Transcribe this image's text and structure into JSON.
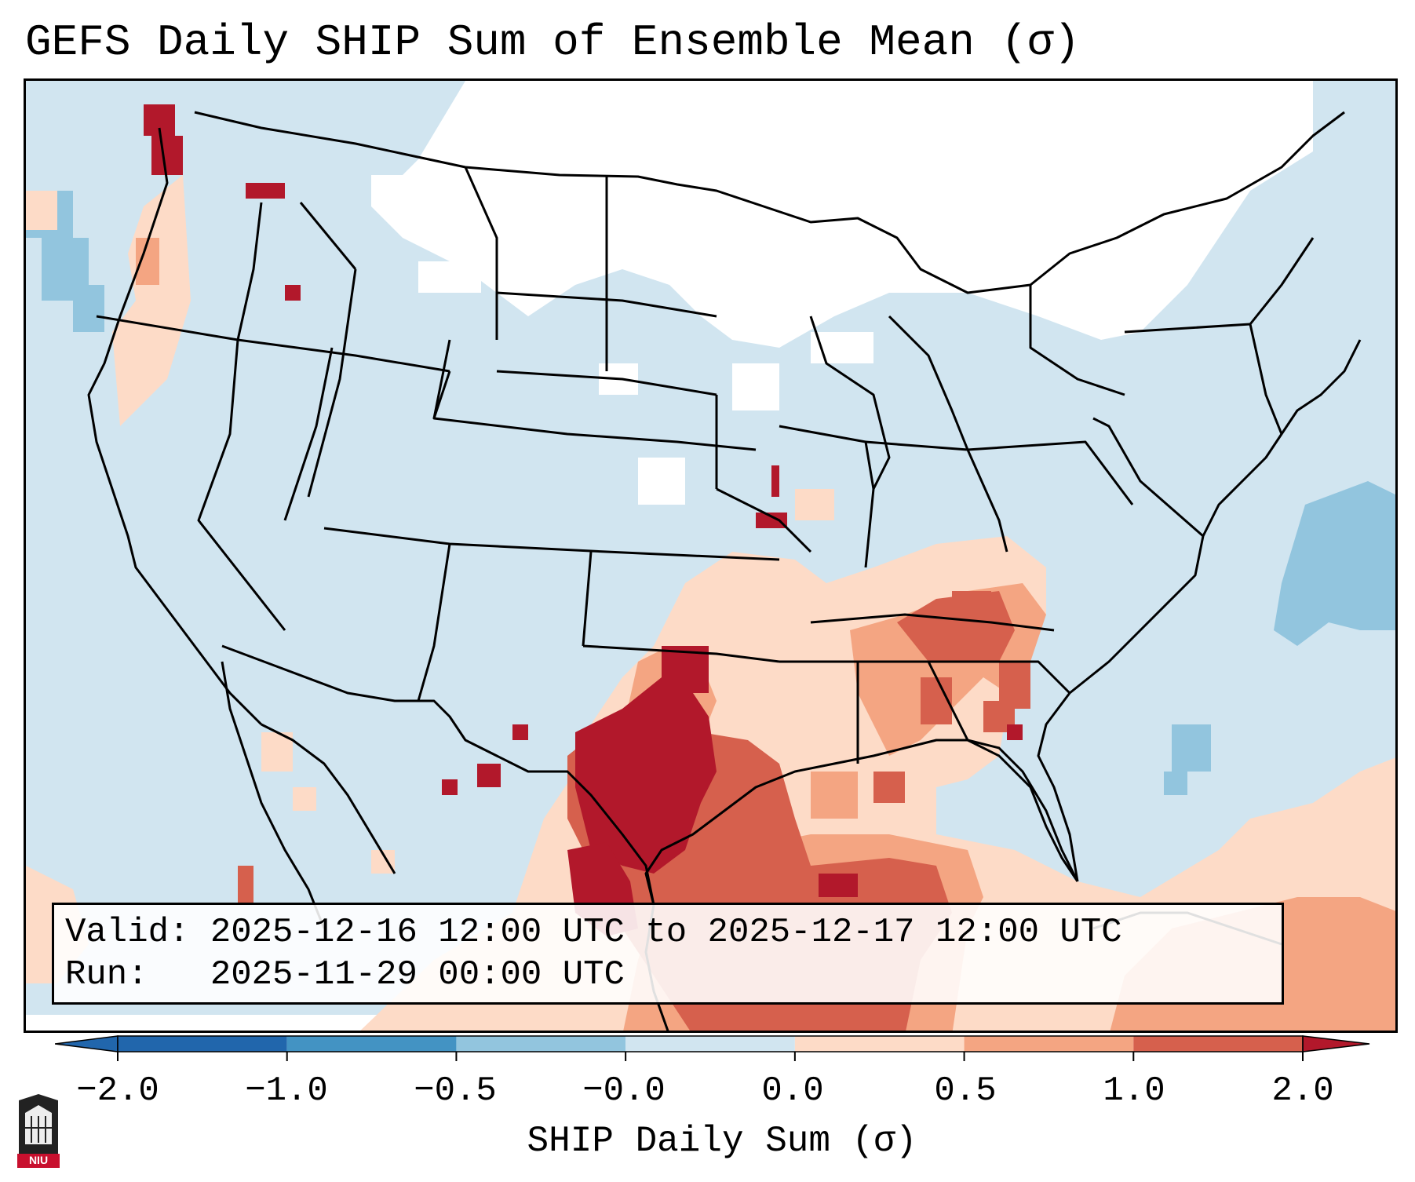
{
  "title": "GEFS Daily SHIP Sum of Ensemble Mean (σ)",
  "info": {
    "valid_label": "Valid:",
    "valid_value": "2025-12-16 12:00 UTC to 2025-12-17 12:00 UTC",
    "run_label": "Run:",
    "run_value": "2025-11-29 00:00 UTC"
  },
  "colorbar": {
    "label": "SHIP Daily Sum (σ)",
    "ticks": [
      "−2.0",
      "−1.0",
      "−0.5",
      "−0.0",
      "0.0",
      "0.5",
      "1.0",
      "2.0"
    ],
    "colors": [
      "#2166ac",
      "#4393c3",
      "#92c5de",
      "#d1e5f0",
      "#fddbc7",
      "#f4a582",
      "#d6604d",
      "#b2182b"
    ]
  },
  "map": {
    "projection": "Lambert Conformal CONUS",
    "background_category": "−0.5 to 0.0",
    "highlighted_region": "Southern Plains / Texas / Gulf Coast / Tennessee Valley (0.5 to 2.0σ)"
  },
  "logo": {
    "text": "NIU"
  }
}
